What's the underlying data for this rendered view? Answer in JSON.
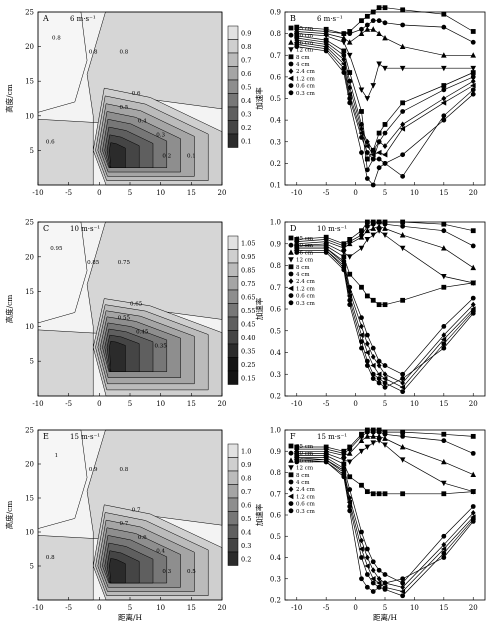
{
  "figure": {
    "common": {
      "contour_ylabel": "高度/cm",
      "line_ylabel": "加速率",
      "xlabel": "距离/H",
      "xticks": [
        -10,
        -5,
        0,
        5,
        10,
        15,
        20
      ],
      "contour_yticks": [
        5,
        10,
        15,
        20,
        25
      ],
      "legend_labels": [
        "25 cm",
        "20 cm",
        "16 cm",
        "12 cm",
        "8 cm",
        "4 cm",
        "2.4 cm",
        "1.2 cm",
        "0.6 cm",
        "0.3 cm"
      ]
    },
    "rows": [
      {
        "speed": "6 m·s⁻¹",
        "contour": {
          "letter": "A",
          "colorbar_ticks": [
            "0.9",
            "0.8",
            "0.7",
            "0.6",
            "0.5",
            "0.4",
            "0.3",
            "0.2",
            "0.1"
          ],
          "contour_labels": [
            "0.8",
            "0.8",
            "0.8",
            "0.6",
            "0.5",
            "0.4",
            "0.3",
            "0.2",
            "0.1",
            "0.6"
          ],
          "show_xlabel": false
        },
        "line": {
          "letter": "B",
          "yticks": [
            "0.9",
            "0.8",
            "0.7",
            "0.6",
            "0.5",
            "0.4",
            "0.3",
            "0.2",
            "0.1"
          ],
          "show_xlabel": false
        }
      },
      {
        "speed": "10 m·s⁻¹",
        "contour": {
          "letter": "C",
          "colorbar_ticks": [
            "1.05",
            "0.95",
            "0.85",
            "0.75",
            "0.65",
            "0.55",
            "0.45",
            "0.40",
            "0.35",
            "0.25",
            "0.15"
          ],
          "contour_labels": [
            "0.95",
            "0.85",
            "0.75",
            "0.65",
            "0.55",
            "0.45",
            "0.35"
          ],
          "show_xlabel": false
        },
        "line": {
          "letter": "D",
          "yticks": [
            "1.0",
            "0.9",
            "0.8",
            "0.7",
            "0.6",
            "0.5",
            "0.4",
            "0.3",
            "0.2"
          ],
          "show_xlabel": false
        }
      },
      {
        "speed": "15 m·s⁻¹",
        "contour": {
          "letter": "E",
          "colorbar_ticks": [
            "1.0",
            "0.9",
            "0.8",
            "0.7",
            "0.6",
            "0.5",
            "0.4",
            "0.3",
            "0.2"
          ],
          "contour_labels": [
            "1",
            "0.9",
            "0.8",
            "0.7",
            "0.7",
            "0.6",
            "0.4",
            "0.3",
            "0.5",
            "0.8"
          ],
          "show_xlabel": true
        },
        "line": {
          "letter": "F",
          "yticks": [
            "1.0",
            "0.9",
            "0.8",
            "0.7",
            "0.6",
            "0.5",
            "0.4",
            "0.3",
            "0.2"
          ],
          "show_xlabel": true
        }
      }
    ]
  },
  "chart_data": [
    {
      "type": "heatmap",
      "panel": "A",
      "title": "6 m·s⁻¹",
      "xlabel": "",
      "ylabel": "高度/cm",
      "xlim": [
        -10,
        20
      ],
      "ylim": [
        0,
        25
      ],
      "colorbar_range": [
        0.1,
        1.0
      ],
      "contour_levels": [
        0.1,
        0.2,
        0.3,
        0.4,
        0.5,
        0.6,
        0.7,
        0.8,
        0.9
      ],
      "minimum": {
        "x": 2,
        "y": 5,
        "value": 0.1
      }
    },
    {
      "type": "line",
      "panel": "B",
      "title": "6 m·s⁻¹",
      "xlabel": "",
      "ylabel": "加速率",
      "xlim": [
        -12,
        22
      ],
      "ylim": [
        0.1,
        0.9
      ],
      "legend": "left",
      "x": [
        -10,
        -5,
        -2,
        -1,
        1,
        2,
        3,
        4,
        5,
        8,
        15,
        20
      ],
      "series": [
        {
          "name": "25 cm",
          "values": [
            0.83,
            0.82,
            0.8,
            0.81,
            0.86,
            0.88,
            0.9,
            0.92,
            0.92,
            0.91,
            0.89,
            0.81
          ]
        },
        {
          "name": "20 cm",
          "values": [
            0.82,
            0.81,
            0.8,
            0.8,
            0.82,
            0.84,
            0.86,
            0.86,
            0.85,
            0.84,
            0.83,
            0.76
          ]
        },
        {
          "name": "16 cm",
          "values": [
            0.81,
            0.8,
            0.78,
            0.76,
            0.8,
            0.82,
            0.82,
            0.8,
            0.78,
            0.74,
            0.7,
            0.7
          ]
        },
        {
          "name": "12 cm",
          "values": [
            0.8,
            0.79,
            0.76,
            0.7,
            0.54,
            0.5,
            0.56,
            0.66,
            0.64,
            0.64,
            0.64,
            0.64
          ]
        },
        {
          "name": "8 cm",
          "values": [
            0.79,
            0.77,
            0.72,
            0.62,
            0.44,
            0.22,
            0.26,
            0.34,
            0.38,
            0.48,
            0.56,
            0.62
          ]
        },
        {
          "name": "4 cm",
          "values": [
            0.78,
            0.76,
            0.7,
            0.58,
            0.38,
            0.17,
            0.22,
            0.3,
            0.34,
            0.44,
            0.54,
            0.6
          ]
        },
        {
          "name": "2.4 cm",
          "values": [
            0.77,
            0.75,
            0.68,
            0.55,
            0.36,
            0.3,
            0.26,
            0.3,
            0.28,
            0.38,
            0.5,
            0.58
          ]
        },
        {
          "name": "1.2 cm",
          "values": [
            0.76,
            0.74,
            0.66,
            0.52,
            0.34,
            0.28,
            0.24,
            0.25,
            0.24,
            0.36,
            0.48,
            0.56
          ]
        },
        {
          "name": "0.6 cm",
          "values": [
            0.75,
            0.73,
            0.64,
            0.5,
            0.32,
            0.25,
            0.22,
            0.22,
            0.2,
            0.14,
            0.42,
            0.54
          ]
        },
        {
          "name": "0.3 cm",
          "values": [
            0.74,
            0.72,
            0.62,
            0.48,
            0.25,
            0.13,
            0.1,
            0.18,
            0.2,
            0.24,
            0.4,
            0.52
          ]
        }
      ]
    },
    {
      "type": "heatmap",
      "panel": "C",
      "title": "10 m·s⁻¹",
      "xlabel": "",
      "ylabel": "高度/cm",
      "xlim": [
        -10,
        20
      ],
      "ylim": [
        0,
        25
      ],
      "colorbar_range": [
        0.15,
        1.05
      ],
      "contour_levels": [
        0.15,
        0.25,
        0.35,
        0.4,
        0.45,
        0.55,
        0.65,
        0.75,
        0.85,
        0.95,
        1.05
      ],
      "minimum": {
        "x": 2,
        "y": 7,
        "value": 0.15
      }
    },
    {
      "type": "line",
      "panel": "D",
      "title": "10 m·s⁻¹",
      "xlabel": "",
      "ylabel": "加速率",
      "xlim": [
        -12,
        22
      ],
      "ylim": [
        0.2,
        1.0
      ],
      "legend": "left",
      "x": [
        -10,
        -5,
        -2,
        -1,
        1,
        2,
        3,
        4,
        5,
        8,
        15,
        20
      ],
      "series": [
        {
          "name": "25 cm",
          "values": [
            0.92,
            0.93,
            0.9,
            0.92,
            0.96,
            1.0,
            1.0,
            1.0,
            1.0,
            1.0,
            0.99,
            0.96
          ]
        },
        {
          "name": "20 cm",
          "values": [
            0.91,
            0.92,
            0.89,
            0.91,
            0.94,
            0.98,
            0.99,
            1.0,
            0.99,
            0.98,
            0.96,
            0.89
          ]
        },
        {
          "name": "16 cm",
          "values": [
            0.9,
            0.91,
            0.88,
            0.9,
            0.93,
            0.96,
            0.97,
            0.98,
            0.97,
            0.94,
            0.88,
            0.79
          ]
        },
        {
          "name": "12 cm",
          "values": [
            0.89,
            0.9,
            0.86,
            0.84,
            0.88,
            0.92,
            0.94,
            0.96,
            0.94,
            0.88,
            0.75,
            0.72
          ]
        },
        {
          "name": "8 cm",
          "values": [
            0.89,
            0.89,
            0.84,
            0.76,
            0.7,
            0.66,
            0.64,
            0.62,
            0.62,
            0.64,
            0.7,
            0.72
          ]
        },
        {
          "name": "4 cm",
          "values": [
            0.88,
            0.88,
            0.82,
            0.7,
            0.56,
            0.48,
            0.42,
            0.36,
            0.34,
            0.3,
            0.52,
            0.65
          ]
        },
        {
          "name": "2.4 cm",
          "values": [
            0.88,
            0.88,
            0.81,
            0.68,
            0.52,
            0.44,
            0.38,
            0.34,
            0.3,
            0.26,
            0.48,
            0.62
          ]
        },
        {
          "name": "1.2 cm",
          "values": [
            0.87,
            0.87,
            0.8,
            0.66,
            0.48,
            0.4,
            0.34,
            0.3,
            0.28,
            0.24,
            0.46,
            0.6
          ]
        },
        {
          "name": "0.6 cm",
          "values": [
            0.87,
            0.87,
            0.79,
            0.64,
            0.45,
            0.36,
            0.3,
            0.28,
            0.26,
            0.22,
            0.44,
            0.59
          ]
        },
        {
          "name": "0.3 cm",
          "values": [
            0.86,
            0.86,
            0.78,
            0.62,
            0.42,
            0.34,
            0.28,
            0.26,
            0.24,
            0.28,
            0.42,
            0.58
          ]
        }
      ]
    },
    {
      "type": "heatmap",
      "panel": "E",
      "title": "15 m·s⁻¹",
      "xlabel": "距离/H",
      "ylabel": "高度/cm",
      "xlim": [
        -10,
        20
      ],
      "ylim": [
        0,
        25
      ],
      "colorbar_range": [
        0.2,
        1.0
      ],
      "contour_levels": [
        0.2,
        0.3,
        0.4,
        0.5,
        0.6,
        0.7,
        0.8,
        0.9,
        1.0
      ],
      "minimum": {
        "x": 2,
        "y": 5,
        "value": 0.2
      }
    },
    {
      "type": "line",
      "panel": "F",
      "title": "15 m·s⁻¹",
      "xlabel": "距离/H",
      "ylabel": "加速率",
      "xlim": [
        -12,
        22
      ],
      "ylim": [
        0.2,
        1.0
      ],
      "legend": "left",
      "x": [
        -10,
        -5,
        -2,
        -1,
        1,
        2,
        3,
        4,
        5,
        8,
        15,
        20
      ],
      "series": [
        {
          "name": "25 cm",
          "values": [
            0.92,
            0.92,
            0.9,
            0.92,
            0.98,
            1.0,
            1.0,
            1.0,
            0.99,
            0.99,
            0.98,
            0.97
          ]
        },
        {
          "name": "20 cm",
          "values": [
            0.91,
            0.91,
            0.89,
            0.91,
            0.97,
            0.99,
            0.99,
            0.99,
            0.98,
            0.97,
            0.95,
            0.89
          ]
        },
        {
          "name": "16 cm",
          "values": [
            0.9,
            0.9,
            0.88,
            0.89,
            0.95,
            0.97,
            0.97,
            0.97,
            0.96,
            0.92,
            0.85,
            0.79
          ]
        },
        {
          "name": "12 cm",
          "values": [
            0.89,
            0.89,
            0.86,
            0.85,
            0.9,
            0.92,
            0.94,
            0.95,
            0.93,
            0.86,
            0.75,
            0.71
          ]
        },
        {
          "name": "8 cm",
          "values": [
            0.88,
            0.88,
            0.84,
            0.78,
            0.74,
            0.71,
            0.7,
            0.7,
            0.7,
            0.7,
            0.7,
            0.71
          ]
        },
        {
          "name": "4 cm",
          "values": [
            0.87,
            0.87,
            0.82,
            0.72,
            0.52,
            0.44,
            0.38,
            0.34,
            0.32,
            0.28,
            0.5,
            0.64
          ]
        },
        {
          "name": "2.4 cm",
          "values": [
            0.87,
            0.86,
            0.81,
            0.68,
            0.48,
            0.4,
            0.34,
            0.3,
            0.28,
            0.26,
            0.46,
            0.61
          ]
        },
        {
          "name": "1.2 cm",
          "values": [
            0.86,
            0.86,
            0.8,
            0.66,
            0.44,
            0.36,
            0.3,
            0.28,
            0.26,
            0.24,
            0.44,
            0.59
          ]
        },
        {
          "name": "0.6 cm",
          "values": [
            0.86,
            0.85,
            0.79,
            0.64,
            0.4,
            0.32,
            0.28,
            0.26,
            0.25,
            0.22,
            0.42,
            0.58
          ]
        },
        {
          "name": "0.3 cm",
          "values": [
            0.85,
            0.85,
            0.78,
            0.62,
            0.3,
            0.26,
            0.24,
            0.26,
            0.28,
            0.3,
            0.4,
            0.57
          ]
        }
      ]
    }
  ]
}
